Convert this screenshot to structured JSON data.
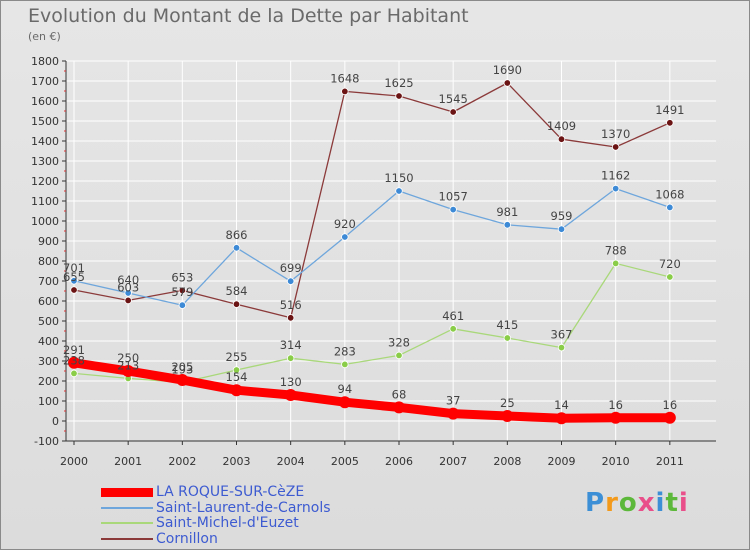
{
  "title": "Evolution du Montant de la Dette par Habitant",
  "subtitle": "(en €)",
  "logo_text": "Proxiti",
  "chart_data": {
    "type": "line",
    "categories": [
      "2000",
      "2001",
      "2002",
      "2003",
      "2004",
      "2005",
      "2006",
      "2007",
      "2008",
      "2009",
      "2010",
      "2011"
    ],
    "ylim": [
      -100,
      1800
    ],
    "ytick_step": 100,
    "grid": true,
    "legend": "bottom-left",
    "series": [
      {
        "name": "LA ROQUE-SUR-CèZE",
        "color": "#ff0000",
        "values": [
          291,
          250,
          205,
          154,
          130,
          94,
          68,
          37,
          25,
          14,
          16,
          16
        ]
      },
      {
        "name": "Saint-Laurent-de-Carnols",
        "color": "#6ea6dc",
        "point_color": "#3d8ad6",
        "values": [
          701,
          640,
          579,
          866,
          699,
          920,
          1150,
          1057,
          981,
          959,
          1162,
          1068
        ]
      },
      {
        "name": "Saint-Michel-d'Euzet",
        "color": "#a9d87a",
        "point_color": "#8acd48",
        "values": [
          238,
          213,
          193,
          255,
          314,
          283,
          328,
          461,
          415,
          367,
          788,
          720
        ]
      },
      {
        "name": "Cornillon",
        "color": "#8b3a3a",
        "point_color": "#6b1414",
        "values": [
          655,
          603,
          653,
          584,
          516,
          1648,
          1625,
          1545,
          1690,
          1409,
          1370,
          1491
        ]
      }
    ]
  }
}
